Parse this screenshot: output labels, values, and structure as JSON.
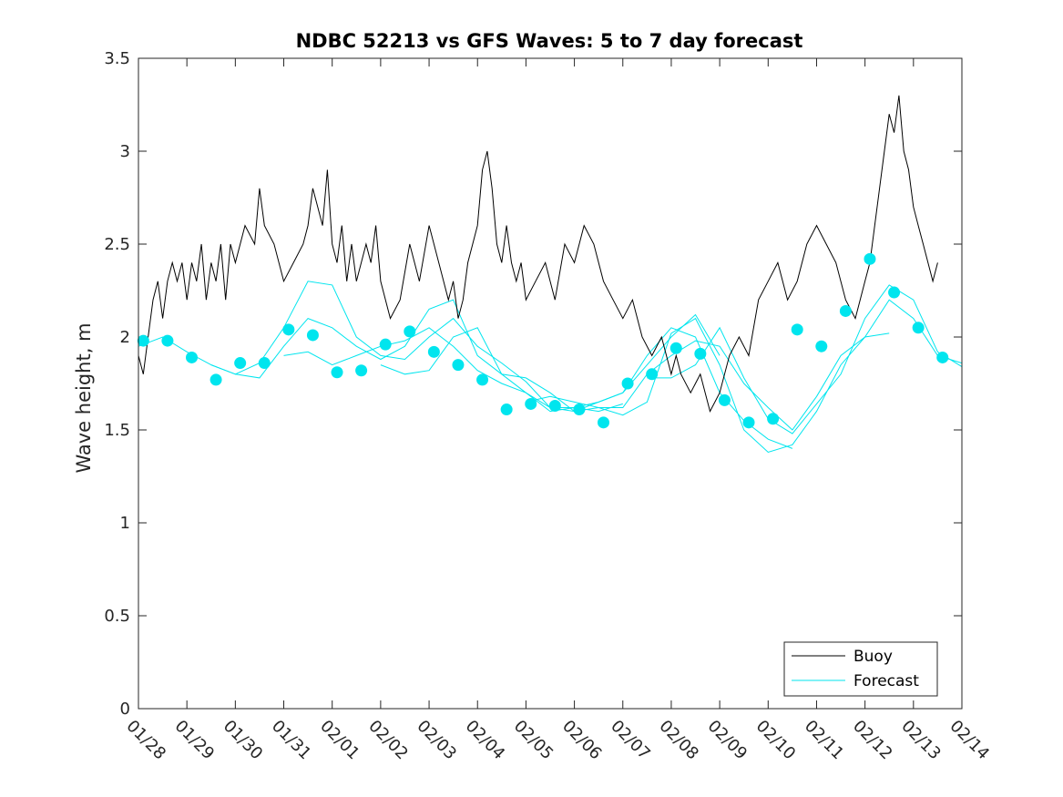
{
  "chart_data": {
    "type": "line",
    "title": "NDBC 52213 vs GFS Waves: 5 to 7 day forecast",
    "xlabel": "",
    "ylabel": "Wave height, m",
    "x_tick_labels": [
      "01/28",
      "01/29",
      "01/30",
      "01/31",
      "02/01",
      "02/02",
      "02/03",
      "02/04",
      "02/05",
      "02/06",
      "02/07",
      "02/08",
      "02/09",
      "02/10",
      "02/11",
      "02/12",
      "02/13",
      "02/14"
    ],
    "y_ticks": [
      0,
      0.5,
      1,
      1.5,
      2,
      2.5,
      3,
      3.5
    ],
    "y_tick_labels": [
      "0",
      "0.5",
      "1",
      "1.5",
      "2",
      "2.5",
      "3",
      "3.5"
    ],
    "xlim_days": [
      0,
      17
    ],
    "ylim": [
      0,
      3.5
    ],
    "legend": {
      "position": "bottom-right",
      "entries": [
        {
          "name": "Buoy",
          "color": "#000000"
        },
        {
          "name": "Forecast",
          "color": "#00e5ee"
        }
      ]
    },
    "series": [
      {
        "name": "Buoy",
        "color": "#000000",
        "x_days": [
          0.0,
          0.1,
          0.2,
          0.3,
          0.4,
          0.5,
          0.6,
          0.7,
          0.8,
          0.9,
          1.0,
          1.1,
          1.2,
          1.3,
          1.4,
          1.5,
          1.6,
          1.7,
          1.8,
          1.9,
          2.0,
          2.2,
          2.4,
          2.5,
          2.6,
          2.8,
          3.0,
          3.2,
          3.4,
          3.5,
          3.6,
          3.7,
          3.8,
          3.9,
          4.0,
          4.1,
          4.2,
          4.3,
          4.4,
          4.5,
          4.6,
          4.7,
          4.8,
          4.9,
          5.0,
          5.2,
          5.4,
          5.6,
          5.8,
          6.0,
          6.2,
          6.4,
          6.5,
          6.6,
          6.7,
          6.8,
          6.9,
          7.0,
          7.1,
          7.2,
          7.3,
          7.4,
          7.5,
          7.6,
          7.7,
          7.8,
          7.9,
          8.0,
          8.2,
          8.4,
          8.6,
          8.8,
          9.0,
          9.2,
          9.4,
          9.6,
          9.8,
          10.0,
          10.2,
          10.4,
          10.6,
          10.8,
          11.0,
          11.1,
          11.2,
          11.4,
          11.6,
          11.8,
          12.0,
          12.2,
          12.4,
          12.6,
          12.8,
          13.0,
          13.2,
          13.4,
          13.6,
          13.8,
          14.0,
          14.2,
          14.4,
          14.6,
          14.8,
          14.9,
          15.0,
          15.1,
          15.2,
          15.3,
          15.4,
          15.5,
          15.6,
          15.7,
          15.8,
          15.9,
          16.0,
          16.1,
          16.2,
          16.3,
          16.4,
          16.5
        ],
        "values": [
          1.9,
          1.8,
          2.0,
          2.2,
          2.3,
          2.1,
          2.3,
          2.4,
          2.3,
          2.4,
          2.2,
          2.4,
          2.3,
          2.5,
          2.2,
          2.4,
          2.3,
          2.5,
          2.2,
          2.5,
          2.4,
          2.6,
          2.5,
          2.8,
          2.6,
          2.5,
          2.3,
          2.4,
          2.5,
          2.6,
          2.8,
          2.7,
          2.6,
          2.9,
          2.5,
          2.4,
          2.6,
          2.3,
          2.5,
          2.3,
          2.4,
          2.5,
          2.4,
          2.6,
          2.3,
          2.1,
          2.2,
          2.5,
          2.3,
          2.6,
          2.4,
          2.2,
          2.3,
          2.1,
          2.2,
          2.4,
          2.5,
          2.6,
          2.9,
          3.0,
          2.8,
          2.5,
          2.4,
          2.6,
          2.4,
          2.3,
          2.4,
          2.2,
          2.3,
          2.4,
          2.2,
          2.5,
          2.4,
          2.6,
          2.5,
          2.3,
          2.2,
          2.1,
          2.2,
          2.0,
          1.9,
          2.0,
          1.8,
          1.9,
          1.8,
          1.7,
          1.8,
          1.6,
          1.7,
          1.9,
          2.0,
          1.9,
          2.2,
          2.3,
          2.4,
          2.2,
          2.3,
          2.5,
          2.6,
          2.5,
          2.4,
          2.2,
          2.1,
          2.2,
          2.3,
          2.4,
          2.6,
          2.8,
          3.0,
          3.2,
          3.1,
          3.3,
          3.0,
          2.9,
          2.7,
          2.6,
          2.5,
          2.4,
          2.3,
          2.4
        ]
      },
      {
        "name": "Forecast",
        "color": "#00e5ee",
        "x_days": [
          0.1,
          0.6,
          1.1,
          1.6,
          2.1,
          2.6,
          3.1,
          3.6,
          4.1,
          4.6,
          5.1,
          5.6,
          6.1,
          6.6,
          7.1,
          7.6,
          8.1,
          8.6,
          9.1,
          9.6,
          10.1,
          10.6,
          11.1,
          11.6,
          12.1,
          12.6,
          13.1,
          13.6,
          14.1,
          14.6,
          15.1,
          15.6,
          16.1,
          16.6
        ],
        "values": [
          1.98,
          1.98,
          1.89,
          1.77,
          1.86,
          1.86,
          2.04,
          2.01,
          1.81,
          1.82,
          1.96,
          2.03,
          1.92,
          1.85,
          1.77,
          1.61,
          1.64,
          1.63,
          1.61,
          1.54,
          1.75,
          1.8,
          1.94,
          1.91,
          1.66,
          1.54,
          1.56,
          2.04,
          1.95,
          2.14,
          2.42,
          2.24,
          2.05,
          1.89
        ]
      }
    ],
    "forecast_runs": [
      {
        "x_days": [
          0.0,
          0.5,
          1.0,
          1.5,
          2.0,
          2.5,
          3.0,
          3.5,
          4.0,
          4.5,
          5.0,
          5.5,
          6.0,
          6.5,
          7.0,
          7.5,
          8.0,
          8.5,
          9.0,
          9.5,
          10.0
        ],
        "values": [
          1.95,
          2.0,
          1.92,
          1.85,
          1.8,
          1.86,
          2.05,
          2.3,
          2.28,
          2.0,
          1.9,
          1.88,
          2.0,
          2.1,
          1.95,
          1.86,
          1.76,
          1.62,
          1.62,
          1.6,
          1.64
        ]
      },
      {
        "x_days": [
          1.5,
          2.0,
          2.5,
          3.0,
          3.5,
          4.0,
          4.5,
          5.0,
          5.5,
          6.0,
          6.5,
          7.0,
          7.5,
          8.0,
          8.5,
          9.0,
          9.5,
          10.0,
          10.5,
          11.0,
          11.5,
          12.0
        ],
        "values": [
          1.85,
          1.8,
          1.78,
          1.95,
          2.1,
          2.05,
          1.95,
          1.88,
          1.95,
          2.15,
          2.2,
          1.9,
          1.8,
          1.7,
          1.6,
          1.62,
          1.65,
          1.7,
          1.85,
          2.0,
          2.12,
          1.9
        ]
      },
      {
        "x_days": [
          3.0,
          3.5,
          4.0,
          4.5,
          5.0,
          5.5,
          6.0,
          6.5,
          7.0,
          7.5,
          8.0,
          8.5,
          9.0,
          9.5,
          10.0,
          10.5,
          11.0,
          11.5,
          12.0,
          12.5,
          13.0,
          13.5
        ],
        "values": [
          1.9,
          1.92,
          1.85,
          1.9,
          1.95,
          1.98,
          2.05,
          1.95,
          1.82,
          1.75,
          1.7,
          1.62,
          1.6,
          1.65,
          1.7,
          1.9,
          2.05,
          2.0,
          1.7,
          1.55,
          1.45,
          1.4
        ]
      },
      {
        "x_days": [
          5.0,
          5.5,
          6.0,
          6.5,
          7.0,
          7.5,
          8.0,
          8.5,
          9.0,
          9.5,
          10.0,
          10.5,
          11.0,
          11.5,
          12.0,
          12.5,
          13.0,
          13.5,
          14.0,
          14.5,
          15.0,
          15.5
        ],
        "values": [
          1.85,
          1.8,
          1.82,
          2.0,
          2.05,
          1.8,
          1.78,
          1.7,
          1.6,
          1.62,
          1.58,
          1.65,
          2.02,
          2.1,
          1.85,
          1.5,
          1.38,
          1.42,
          1.6,
          1.85,
          2.0,
          2.02
        ]
      },
      {
        "x_days": [
          8.0,
          8.5,
          9.0,
          9.5,
          10.0,
          10.5,
          11.0,
          11.5,
          12.0,
          12.5,
          13.0,
          13.5,
          14.0,
          14.5,
          15.0,
          15.5,
          16.0,
          16.5,
          17.0
        ],
        "values": [
          1.65,
          1.68,
          1.65,
          1.62,
          1.62,
          1.8,
          1.9,
          1.98,
          1.95,
          1.75,
          1.62,
          1.5,
          1.68,
          1.9,
          2.0,
          2.2,
          2.1,
          1.9,
          1.86
        ]
      },
      {
        "x_days": [
          10.5,
          11.0,
          11.5,
          12.0,
          12.5,
          13.0,
          13.5,
          14.0,
          14.5,
          15.0,
          15.5,
          16.0,
          16.5,
          17.0
        ],
        "values": [
          1.78,
          1.78,
          1.85,
          2.05,
          1.78,
          1.56,
          1.48,
          1.64,
          1.8,
          2.1,
          2.28,
          2.2,
          1.92,
          1.84
        ]
      }
    ]
  }
}
